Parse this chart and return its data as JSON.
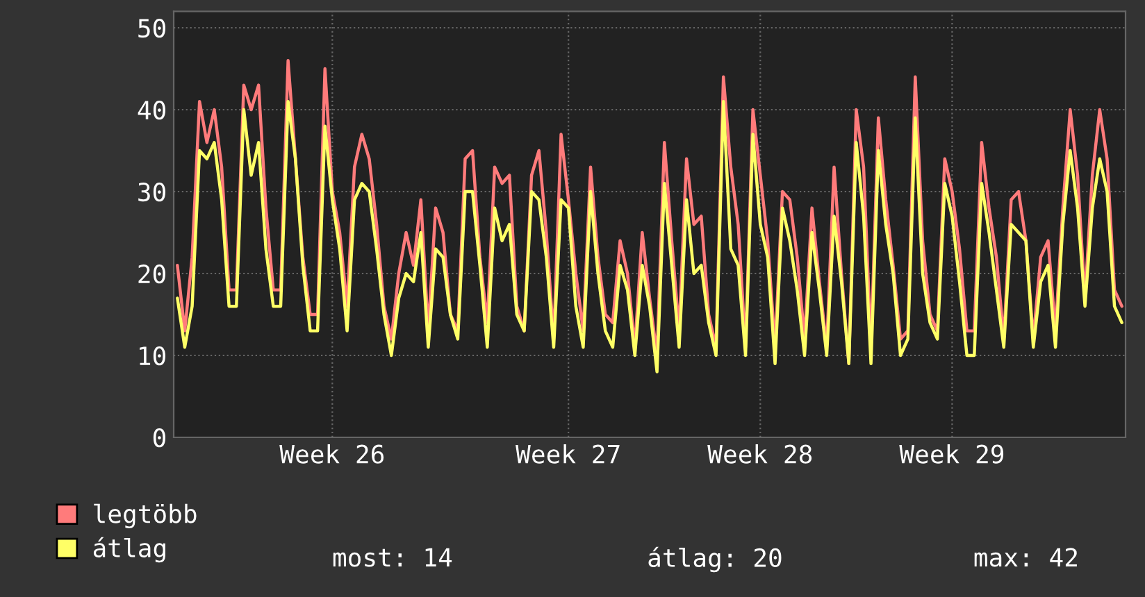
{
  "chart_data": {
    "type": "line",
    "categories": [
      null,
      null,
      null,
      null,
      null,
      null,
      null,
      null,
      null,
      null,
      null,
      null,
      null,
      null,
      null,
      null,
      null,
      null,
      null,
      null,
      null,
      "Week 26",
      null,
      null,
      null,
      null,
      null,
      null,
      null,
      null,
      null,
      null,
      null,
      null,
      null,
      null,
      null,
      null,
      null,
      null,
      null,
      null,
      null,
      null,
      null,
      null,
      null,
      null,
      null,
      null,
      null,
      null,
      null,
      "Week 27",
      null,
      null,
      null,
      null,
      null,
      null,
      null,
      null,
      null,
      null,
      null,
      null,
      null,
      null,
      null,
      null,
      null,
      null,
      null,
      null,
      null,
      null,
      null,
      null,
      null,
      "Week 28",
      null,
      null,
      null,
      null,
      null,
      null,
      null,
      null,
      null,
      null,
      null,
      null,
      null,
      null,
      null,
      null,
      null,
      null,
      null,
      null,
      null,
      null,
      null,
      null,
      null,
      "Week 29",
      null,
      null,
      null,
      null,
      null,
      null,
      null,
      null,
      null,
      null,
      null,
      null,
      null,
      null,
      null,
      null,
      null,
      null,
      null,
      null,
      null,
      null,
      null
    ],
    "series": [
      {
        "name": "legtöbb",
        "color": "#ff7b7b",
        "values": [
          21,
          13,
          22,
          41,
          36,
          40,
          33,
          18,
          18,
          43,
          40,
          43,
          28,
          18,
          18,
          46,
          34,
          22,
          15,
          15,
          45,
          30,
          25,
          16,
          33,
          37,
          34,
          26,
          16,
          12,
          20,
          25,
          21,
          29,
          13,
          28,
          25,
          15,
          13,
          34,
          35,
          22,
          14,
          33,
          31,
          32,
          16,
          13,
          32,
          35,
          25,
          12,
          37,
          29,
          20,
          13,
          33,
          22,
          15,
          14,
          24,
          20,
          11,
          25,
          17,
          10,
          36,
          24,
          13,
          34,
          26,
          27,
          15,
          11,
          44,
          33,
          26,
          11,
          40,
          32,
          24,
          11,
          30,
          29,
          22,
          12,
          28,
          19,
          11,
          33,
          20,
          9,
          40,
          33,
          11,
          39,
          29,
          21,
          12,
          13,
          44,
          24,
          15,
          13,
          34,
          30,
          23,
          13,
          13,
          36,
          28,
          22,
          12,
          29,
          30,
          24,
          12,
          22,
          24,
          13,
          28,
          40,
          32,
          17,
          32,
          40,
          34,
          18,
          16
        ]
      },
      {
        "name": "átlag",
        "color": "#ffff66",
        "values": [
          17,
          11,
          16,
          35,
          34,
          36,
          29,
          16,
          16,
          40,
          32,
          36,
          23,
          16,
          16,
          41,
          34,
          21,
          13,
          13,
          38,
          29,
          23,
          13,
          29,
          31,
          30,
          23,
          15,
          10,
          17,
          20,
          19,
          25,
          11,
          23,
          22,
          15,
          12,
          30,
          30,
          21,
          11,
          28,
          24,
          26,
          15,
          13,
          30,
          29,
          22,
          11,
          29,
          28,
          16,
          11,
          30,
          20,
          13,
          11,
          21,
          18,
          10,
          21,
          16,
          8,
          31,
          21,
          11,
          29,
          20,
          21,
          14,
          10,
          41,
          23,
          21,
          10,
          37,
          26,
          22,
          9,
          28,
          24,
          18,
          10,
          25,
          18,
          10,
          27,
          19,
          9,
          36,
          27,
          9,
          35,
          26,
          20,
          10,
          12,
          39,
          20,
          14,
          12,
          31,
          27,
          19,
          10,
          10,
          31,
          25,
          18,
          11,
          26,
          25,
          24,
          11,
          19,
          21,
          11,
          26,
          35,
          28,
          16,
          28,
          34,
          30,
          16,
          14
        ]
      }
    ],
    "ylim": [
      0,
      52
    ],
    "yticks": [
      0,
      10,
      20,
      30,
      40,
      50
    ],
    "grid": true,
    "legend": "bottom left",
    "annotations": [
      "most: 14",
      "átlag: 20",
      "max: 42"
    ]
  }
}
